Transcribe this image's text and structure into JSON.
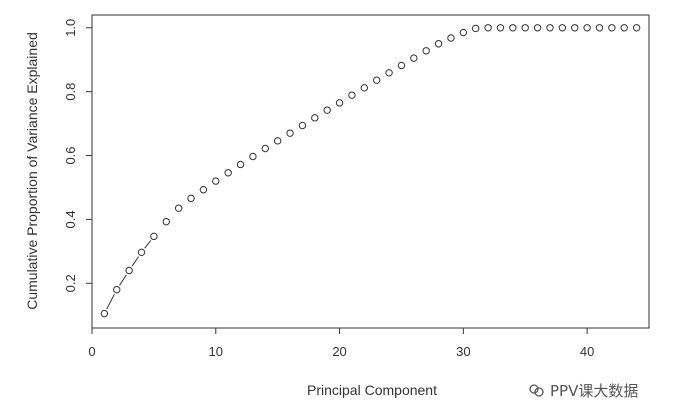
{
  "chart_data": {
    "type": "scatter",
    "title": "",
    "xlabel": "Principal Component",
    "ylabel": "Cumulative Proportion of Variance Explained",
    "xlim": [
      0,
      45
    ],
    "ylim": [
      0.06,
      1.04
    ],
    "xticks": [
      0,
      10,
      20,
      30,
      40
    ],
    "yticks": [
      0.2,
      0.4,
      0.6,
      0.8,
      1.0
    ],
    "ytick_labels": [
      "0.2",
      "0.4",
      "0.6",
      "0.8",
      "1.0"
    ],
    "grid": false,
    "marker": "open-circle",
    "connected_first_points": 5,
    "series": [
      {
        "x": [
          1,
          2,
          3,
          4,
          5,
          6,
          7,
          8,
          9,
          10,
          11,
          12,
          13,
          14,
          15,
          16,
          17,
          18,
          19,
          20,
          21,
          22,
          23,
          24,
          25,
          26,
          27,
          28,
          29,
          30,
          31,
          32,
          33,
          34,
          35,
          36,
          37,
          38,
          39,
          40,
          41,
          42,
          43,
          44
        ],
        "values": [
          0.105,
          0.18,
          0.24,
          0.297,
          0.347,
          0.393,
          0.435,
          0.466,
          0.493,
          0.52,
          0.546,
          0.572,
          0.597,
          0.622,
          0.646,
          0.67,
          0.694,
          0.718,
          0.742,
          0.765,
          0.789,
          0.812,
          0.836,
          0.859,
          0.882,
          0.905,
          0.928,
          0.95,
          0.968,
          0.985,
          0.998,
          1.0,
          1.0,
          1.0,
          1.0,
          1.0,
          1.0,
          1.0,
          1.0,
          1.0,
          1.0,
          1.0,
          1.0,
          1.0
        ]
      }
    ]
  },
  "watermark": {
    "text": "PPV课大数据"
  }
}
